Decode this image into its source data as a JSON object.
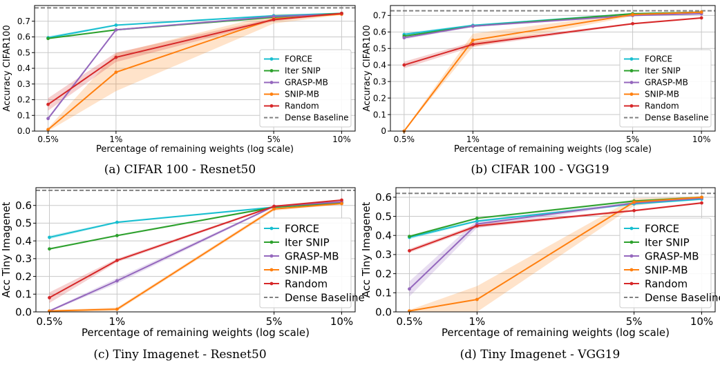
{
  "chart_data": [
    {
      "type": "line",
      "caption": "(a) CIFAR 100 - Resnet50",
      "xlabel": "Percentage of remaining weights (log scale)",
      "ylabel": "Accuracy CIFAR100",
      "x": [
        0.5,
        1,
        5,
        10
      ],
      "x_ticklabels": [
        "0.5%",
        "1%",
        "5%",
        "10%"
      ],
      "xscale": "log",
      "ylim": [
        0,
        0.8
      ],
      "yticks": [
        0,
        0.1,
        0.2,
        0.3,
        0.4,
        0.5,
        0.6,
        0.7
      ],
      "y_ticklabels": [
        "0.0",
        "0.1",
        "0.2",
        "0.3",
        "0.4",
        "0.5",
        "0.6",
        "0.7"
      ],
      "grid": true,
      "legend_position": "lower-right",
      "baseline": {
        "name": "Dense Baseline",
        "value": 0.785
      },
      "series": [
        {
          "name": "FORCE",
          "values": [
            0.595,
            0.675,
            0.735,
            0.75
          ],
          "band": [
            0.01,
            0.005,
            0.005,
            0.005
          ]
        },
        {
          "name": "Iter SNIP",
          "values": [
            0.59,
            0.645,
            0.725,
            0.75
          ],
          "band": [
            0.005,
            0.005,
            0.005,
            0.005
          ]
        },
        {
          "name": "GRASP-MB",
          "values": [
            0.08,
            0.645,
            0.73,
            0.745
          ],
          "band": [
            0.01,
            0.005,
            0.005,
            0.005
          ]
        },
        {
          "name": "SNIP-MB",
          "values": [
            0.01,
            0.375,
            0.715,
            0.745
          ],
          "band": [
            0.01,
            0.12,
            0.03,
            0.005
          ]
        },
        {
          "name": "Random",
          "values": [
            0.17,
            0.47,
            0.71,
            0.75
          ],
          "band": [
            0.04,
            0.03,
            0.01,
            0.005
          ]
        }
      ]
    },
    {
      "type": "line",
      "caption": "(b) CIFAR 100 - VGG19",
      "xlabel": "Percentage of remaining weights (log scale)",
      "ylabel": "Accuracy CIFAR100",
      "x": [
        0.5,
        1,
        5,
        10
      ],
      "x_ticklabels": [
        "0.5%",
        "1%",
        "5%",
        "10%"
      ],
      "xscale": "log",
      "ylim": [
        0,
        0.76
      ],
      "yticks": [
        0,
        0.1,
        0.2,
        0.3,
        0.4,
        0.5,
        0.6,
        0.7
      ],
      "y_ticklabels": [
        "0",
        "0.1",
        "0.2",
        "0.3",
        "0.4",
        "0.5",
        "0.6",
        "0.7"
      ],
      "grid": true,
      "legend_position": "lower-right",
      "baseline": {
        "name": "Dense Baseline",
        "value": 0.728
      },
      "series": [
        {
          "name": "FORCE",
          "values": [
            0.585,
            0.64,
            0.71,
            0.72
          ],
          "band": [
            0.01,
            0.005,
            0.005,
            0.005
          ]
        },
        {
          "name": "Iter SNIP",
          "values": [
            0.575,
            0.635,
            0.71,
            0.72
          ],
          "band": [
            0.005,
            0.005,
            0.005,
            0.005
          ]
        },
        {
          "name": "GRASP-MB",
          "values": [
            0.565,
            0.635,
            0.7,
            0.71
          ],
          "band": [
            0.01,
            0.005,
            0.005,
            0.005
          ]
        },
        {
          "name": "SNIP-MB",
          "values": [
            0.0,
            0.55,
            0.705,
            0.72
          ],
          "band": [
            0.005,
            0.04,
            0.01,
            0.005
          ]
        },
        {
          "name": "Random",
          "values": [
            0.4,
            0.525,
            0.65,
            0.685
          ],
          "band": [
            0.02,
            0.015,
            0.005,
            0.005
          ]
        }
      ]
    },
    {
      "type": "line",
      "caption": "(c) Tiny Imagenet - Resnet50",
      "xlabel": "Percentage of remaining weights (log scale)",
      "ylabel": "Acc Tiny Imagenet",
      "x": [
        0.5,
        1,
        5,
        10
      ],
      "x_ticklabels": [
        "0.5%",
        "1%",
        "5%",
        "10%"
      ],
      "xscale": "log",
      "ylim": [
        0,
        0.7
      ],
      "yticks": [
        0,
        0.1,
        0.2,
        0.3,
        0.4,
        0.5,
        0.6
      ],
      "y_ticklabels": [
        "0.0",
        "0.1",
        "0.2",
        "0.3",
        "0.4",
        "0.5",
        "0.6"
      ],
      "grid": true,
      "legend_position": "lower-right",
      "baseline": {
        "name": "Dense Baseline",
        "value": 0.685
      },
      "series": [
        {
          "name": "FORCE",
          "values": [
            0.42,
            0.505,
            0.59,
            0.615
          ],
          "band": [
            0.01,
            0.005,
            0.005,
            0.005
          ]
        },
        {
          "name": "Iter SNIP",
          "values": [
            0.355,
            0.43,
            0.59,
            0.615
          ],
          "band": [
            0.005,
            0.005,
            0.005,
            0.005
          ]
        },
        {
          "name": "GRASP-MB",
          "values": [
            0.005,
            0.175,
            0.595,
            0.62
          ],
          "band": [
            0.005,
            0.015,
            0.005,
            0.005
          ]
        },
        {
          "name": "SNIP-MB",
          "values": [
            0.005,
            0.015,
            0.58,
            0.61
          ],
          "band": [
            0.005,
            0.01,
            0.01,
            0.005
          ]
        },
        {
          "name": "Random",
          "values": [
            0.08,
            0.29,
            0.595,
            0.63
          ],
          "band": [
            0.03,
            0.01,
            0.005,
            0.005
          ]
        }
      ]
    },
    {
      "type": "line",
      "caption": "(d) Tiny Imagenet - VGG19",
      "xlabel": "Percentage of remaining weights (log scale)",
      "ylabel": "Acc Tiny Imagenet",
      "x": [
        0.5,
        1,
        5,
        10
      ],
      "x_ticklabels": [
        "0.5%",
        "1%",
        "5%",
        "10%"
      ],
      "xscale": "log",
      "ylim": [
        0,
        0.65
      ],
      "yticks": [
        0,
        0.1,
        0.2,
        0.3,
        0.4,
        0.5,
        0.6
      ],
      "y_ticklabels": [
        "0.0",
        "0.1",
        "0.2",
        "0.3",
        "0.4",
        "0.5",
        "0.6"
      ],
      "grid": true,
      "legend_position": "lower-right",
      "baseline": {
        "name": "Dense Baseline",
        "value": 0.62
      },
      "series": [
        {
          "name": "FORCE",
          "values": [
            0.39,
            0.475,
            0.565,
            0.59
          ],
          "band": [
            0.01,
            0.005,
            0.005,
            0.005
          ]
        },
        {
          "name": "Iter SNIP",
          "values": [
            0.395,
            0.49,
            0.58,
            0.6
          ],
          "band": [
            0.005,
            0.005,
            0.005,
            0.005
          ]
        },
        {
          "name": "GRASP-MB",
          "values": [
            0.12,
            0.46,
            0.57,
            0.595
          ],
          "band": [
            0.04,
            0.02,
            0.005,
            0.005
          ]
        },
        {
          "name": "SNIP-MB",
          "values": [
            0.005,
            0.065,
            0.575,
            0.6
          ],
          "band": [
            0.005,
            0.07,
            0.02,
            0.005
          ]
        },
        {
          "name": "Random",
          "values": [
            0.32,
            0.45,
            0.53,
            0.57
          ],
          "band": [
            0.01,
            0.01,
            0.005,
            0.005
          ]
        }
      ]
    }
  ],
  "colors": {
    "FORCE": "#17becf",
    "Iter SNIP": "#2ca02c",
    "GRASP-MB": "#9467bd",
    "SNIP-MB": "#ff7f0e",
    "Random": "#d62728",
    "Dense Baseline": "#808080",
    "grid": "#c8c8c8"
  }
}
